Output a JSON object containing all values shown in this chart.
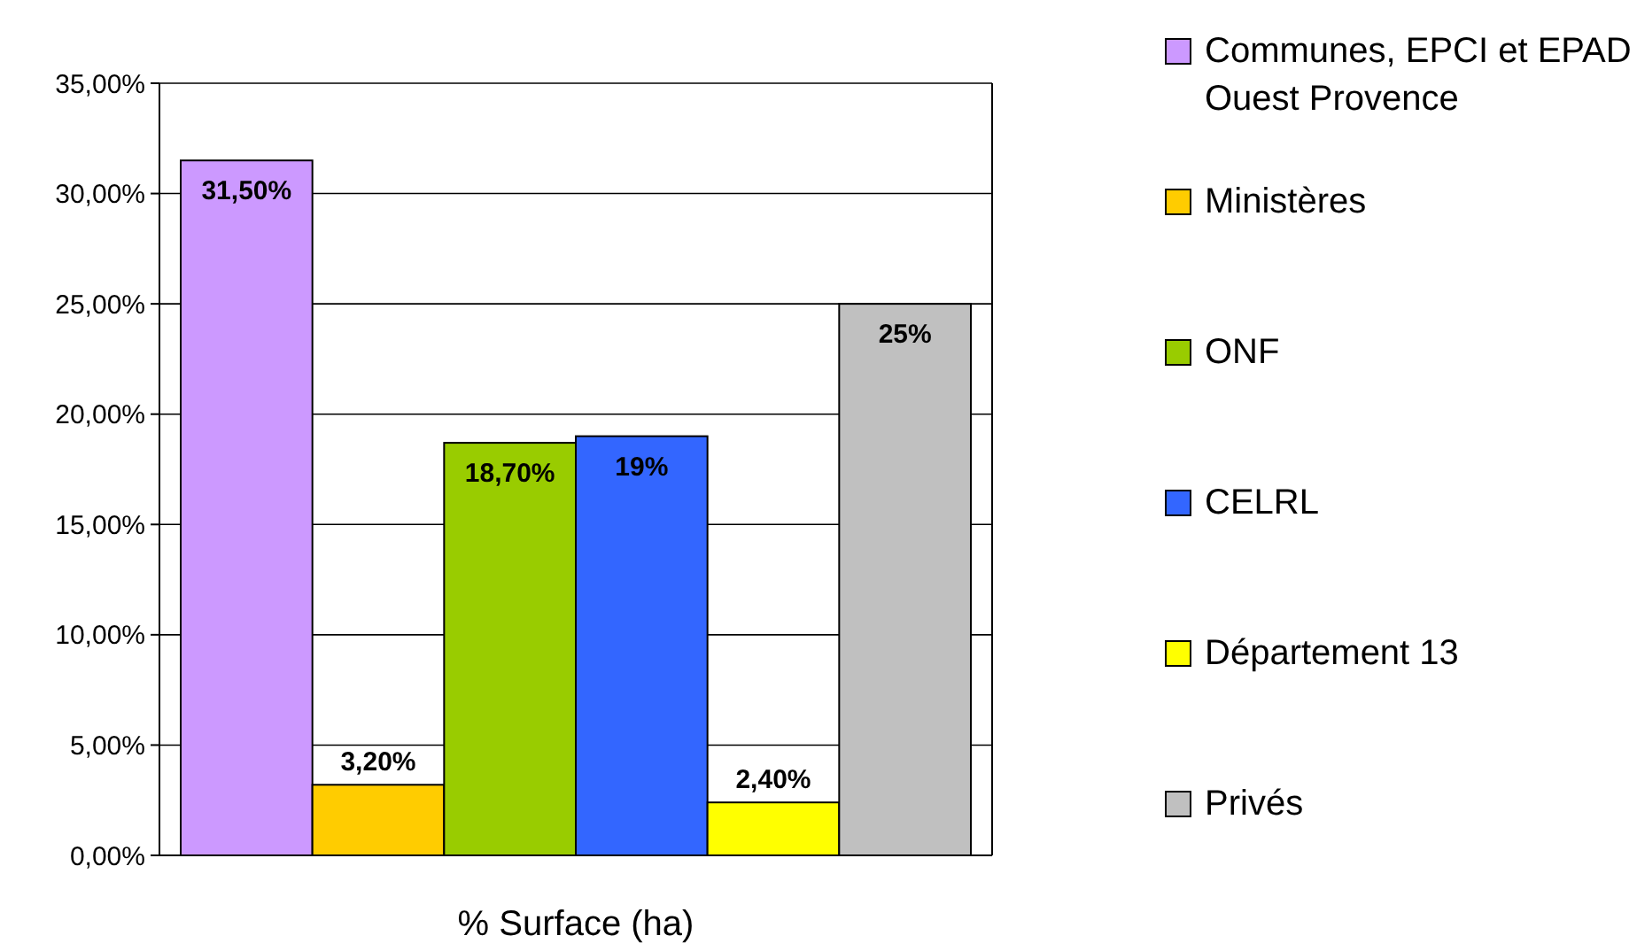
{
  "chart_data": {
    "type": "bar",
    "xlabel": "% Surface (ha)",
    "categories": [
      null
    ],
    "series": [
      {
        "name": "Communes, EPCI et EPAD Ouest Provence",
        "color": "#cc99ff",
        "values": [
          31.5
        ],
        "value_labels": [
          "31,50%"
        ]
      },
      {
        "name": "Ministères",
        "color": "#ffcc00",
        "values": [
          3.2
        ],
        "value_labels": [
          "3,20%"
        ]
      },
      {
        "name": "ONF",
        "color": "#99cc00",
        "values": [
          18.7
        ],
        "value_labels": [
          "18,70%"
        ]
      },
      {
        "name": "CELRL",
        "color": "#3366ff",
        "values": [
          19
        ],
        "value_labels": [
          "19%"
        ]
      },
      {
        "name": "Département 13",
        "color": "#ffff00",
        "values": [
          2.4
        ],
        "value_labels": [
          "2,40%"
        ]
      },
      {
        "name": "Privés",
        "color": "#c0c0c0",
        "values": [
          25
        ],
        "value_labels": [
          "25%"
        ]
      }
    ],
    "ylim": [
      0,
      35
    ],
    "yticks": [
      {
        "value": 0,
        "label": "0,00%"
      },
      {
        "value": 5,
        "label": "5,00%"
      },
      {
        "value": 10,
        "label": "10,00%"
      },
      {
        "value": 15,
        "label": "15,00%"
      },
      {
        "value": 20,
        "label": "20,00%"
      },
      {
        "value": 25,
        "label": "25,00%"
      },
      {
        "value": 30,
        "label": "30,00%"
      },
      {
        "value": 35,
        "label": "35,00%"
      }
    ],
    "grid": "y",
    "legend": "right"
  }
}
